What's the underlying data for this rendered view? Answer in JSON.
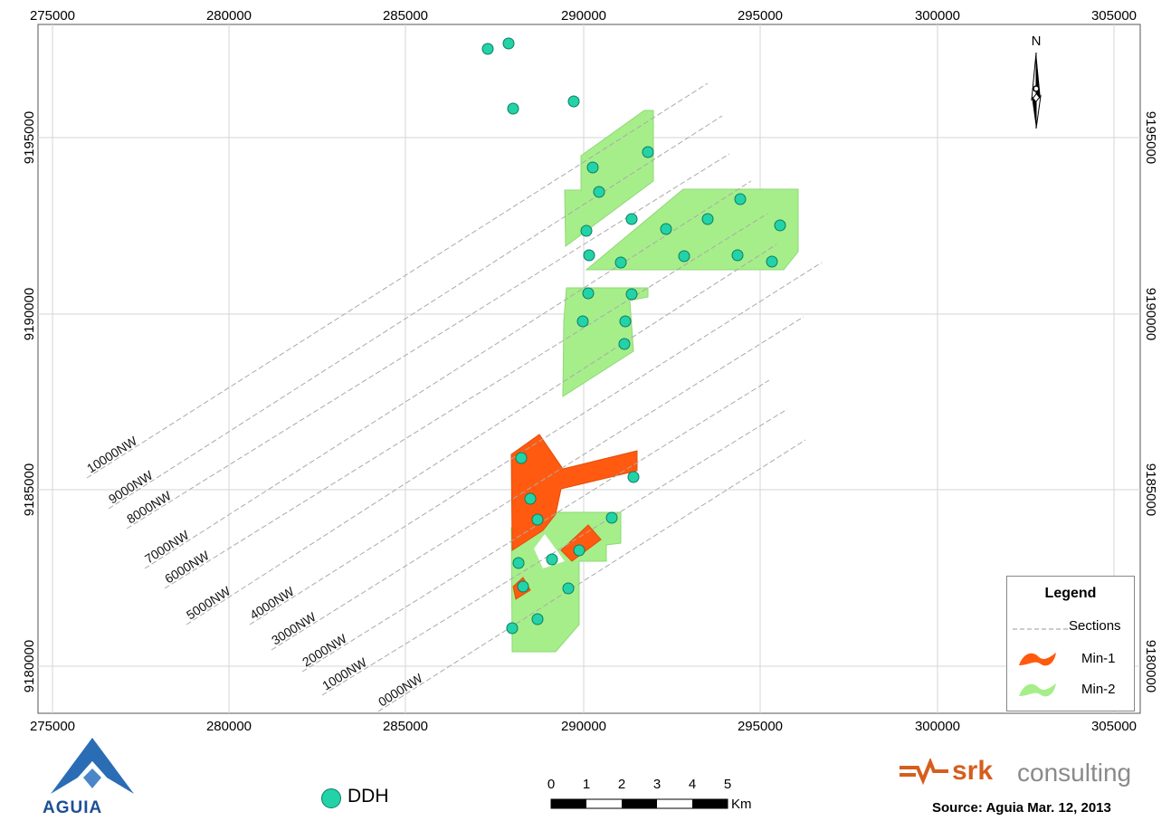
{
  "map": {
    "x_ticks": [
      "275000",
      "280000",
      "285000",
      "290000",
      "295000",
      "300000",
      "305000"
    ],
    "y_ticks": [
      "9195000",
      "9190000",
      "9185000",
      "9180000"
    ],
    "north_label": "N",
    "sections": [
      "10000NW",
      "9000NW",
      "8000NW",
      "7000NW",
      "6000NW",
      "5000NW",
      "4000NW",
      "3000NW",
      "2000NW",
      "1000NW",
      "0000NW"
    ],
    "colors": {
      "min1": "#ff5a0f",
      "min2": "#a6ee8a",
      "ddh": "#22d3a8",
      "section_line": "#aaaaaa"
    }
  },
  "legend": {
    "title": "Legend",
    "sections_label": "Sections",
    "min1_label": "Min-1",
    "min2_label": "Min-2"
  },
  "footer": {
    "ddh_label": "DDH",
    "scale_ticks": [
      "0",
      "1",
      "2",
      "3",
      "4",
      "5"
    ],
    "scale_unit": "Km",
    "logo_left_text": "AGUIA",
    "srk_brand": "srk",
    "srk_suffix": "consulting",
    "source": "Source: Aguia Mar. 12, 2013"
  }
}
